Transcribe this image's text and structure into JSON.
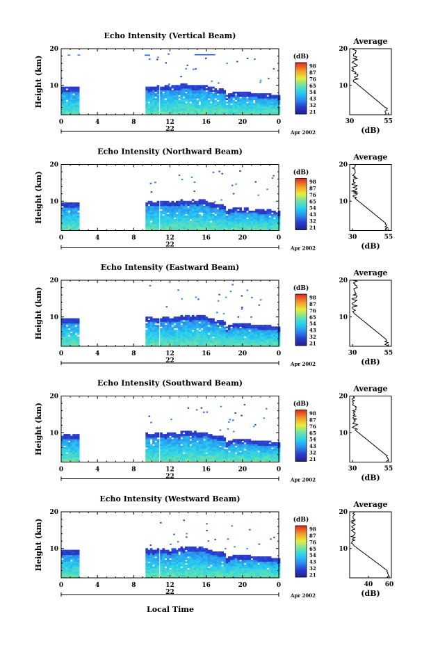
{
  "figure": {
    "x_axis_label": "Local Time",
    "date_label": "Apr 2002",
    "colorbar_unit": "(dB)",
    "average_title": "Average"
  },
  "chart_data": [
    {
      "type": "heatmap",
      "title": "Echo Intensity (Vertical Beam)",
      "ylabel": "Height (km)",
      "ylim": [
        2,
        20
      ],
      "yticks": [
        "20",
        "10"
      ],
      "xticks": [
        "0",
        "4",
        "8",
        "12",
        "16",
        "20",
        "0"
      ],
      "day_label": "22",
      "colorbar": {
        "unit": "(dB)",
        "ticks": [
          "98",
          "87",
          "76",
          "65",
          "54",
          "43",
          "32",
          "21"
        ]
      },
      "average": {
        "title": "Average",
        "xlabel": "(dB)",
        "xticks": [
          "30",
          "55"
        ],
        "xlim": [
          30,
          57
        ],
        "ylim": [
          2,
          20
        ]
      }
    },
    {
      "type": "heatmap",
      "title": "Echo Intensity (Northward Beam)",
      "ylabel": "Height (km)",
      "ylim": [
        2,
        20
      ],
      "yticks": [
        "20",
        "10"
      ],
      "xticks": [
        "0",
        "4",
        "8",
        "12",
        "16",
        "20",
        "0"
      ],
      "day_label": "22",
      "colorbar": {
        "unit": "(dB)",
        "ticks": [
          "98",
          "87",
          "76",
          "65",
          "54",
          "43",
          "32",
          "21"
        ]
      },
      "average": {
        "title": "Average",
        "xlabel": "(dB)",
        "xticks": [
          "30",
          "55"
        ],
        "xlim": [
          28,
          57
        ],
        "ylim": [
          2,
          20
        ]
      }
    },
    {
      "type": "heatmap",
      "title": "Echo Intensity (Eastward Beam)",
      "ylabel": "Height (km)",
      "ylim": [
        2,
        20
      ],
      "yticks": [
        "20",
        "10"
      ],
      "xticks": [
        "0",
        "4",
        "8",
        "12",
        "16",
        "20",
        "0"
      ],
      "day_label": "22",
      "colorbar": {
        "unit": "(dB)",
        "ticks": [
          "98",
          "87",
          "76",
          "65",
          "54",
          "43",
          "32",
          "21"
        ]
      },
      "average": {
        "title": "Average",
        "xlabel": "(dB)",
        "xticks": [
          "30",
          "55"
        ],
        "xlim": [
          28,
          57
        ],
        "ylim": [
          2,
          20
        ]
      }
    },
    {
      "type": "heatmap",
      "title": "Echo Intensity (Southward Beam)",
      "ylabel": "Height (km)",
      "ylim": [
        2,
        20
      ],
      "yticks": [
        "20",
        "10"
      ],
      "xticks": [
        "0",
        "4",
        "8",
        "12",
        "16",
        "20",
        "0"
      ],
      "day_label": "22",
      "colorbar": {
        "unit": "(dB)",
        "ticks": [
          "98",
          "87",
          "76",
          "65",
          "54",
          "43",
          "32",
          "21"
        ]
      },
      "average": {
        "title": "Average",
        "xlabel": "(dB)",
        "xticks": [
          "30",
          "55"
        ],
        "xlim": [
          28,
          57
        ],
        "ylim": [
          2,
          20
        ]
      }
    },
    {
      "type": "heatmap",
      "title": "Echo Intensity (Westward Beam)",
      "ylabel": "Height (km)",
      "ylim": [
        2,
        20
      ],
      "yticks": [
        "20",
        "10"
      ],
      "xticks": [
        "0",
        "4",
        "8",
        "12",
        "16",
        "20",
        "0"
      ],
      "day_label": "22",
      "colorbar": {
        "unit": "(dB)",
        "ticks": [
          "98",
          "87",
          "76",
          "65",
          "54",
          "43",
          "32",
          "21"
        ]
      },
      "average": {
        "title": "Average",
        "xlabel": "(dB)",
        "xticks": [
          "40",
          "60"
        ],
        "xlim": [
          22,
          62
        ],
        "ylim": [
          2,
          20
        ]
      }
    }
  ]
}
